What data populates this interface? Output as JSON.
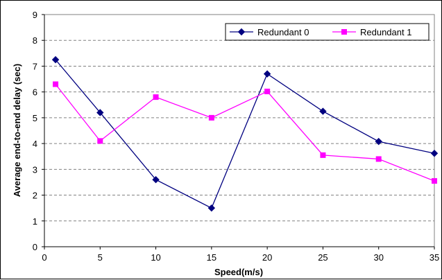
{
  "chart_data": {
    "type": "line",
    "title": "",
    "xlabel": "Speed(m/s)",
    "ylabel": "Average end-to-end delay (sec)",
    "xlim": [
      0,
      35
    ],
    "ylim": [
      0,
      9
    ],
    "xticks": [
      0,
      5,
      10,
      15,
      20,
      25,
      30,
      35
    ],
    "yticks": [
      0,
      1,
      2,
      3,
      4,
      5,
      6,
      7,
      8,
      9
    ],
    "grid": "horizontal-dashed",
    "legend_position": "top-right",
    "series": [
      {
        "name": "Redundant 0",
        "color": "#000080",
        "marker": "diamond",
        "x": [
          1,
          5,
          10,
          15,
          20,
          25,
          30,
          35
        ],
        "y": [
          7.25,
          5.2,
          2.6,
          1.5,
          6.7,
          5.25,
          4.08,
          3.62
        ]
      },
      {
        "name": "Redundant 1",
        "color": "#ff00ff",
        "marker": "square",
        "x": [
          1,
          5,
          10,
          15,
          20,
          25,
          30,
          35
        ],
        "y": [
          6.3,
          4.1,
          5.8,
          5.0,
          6.02,
          3.55,
          3.4,
          2.55
        ]
      }
    ]
  }
}
